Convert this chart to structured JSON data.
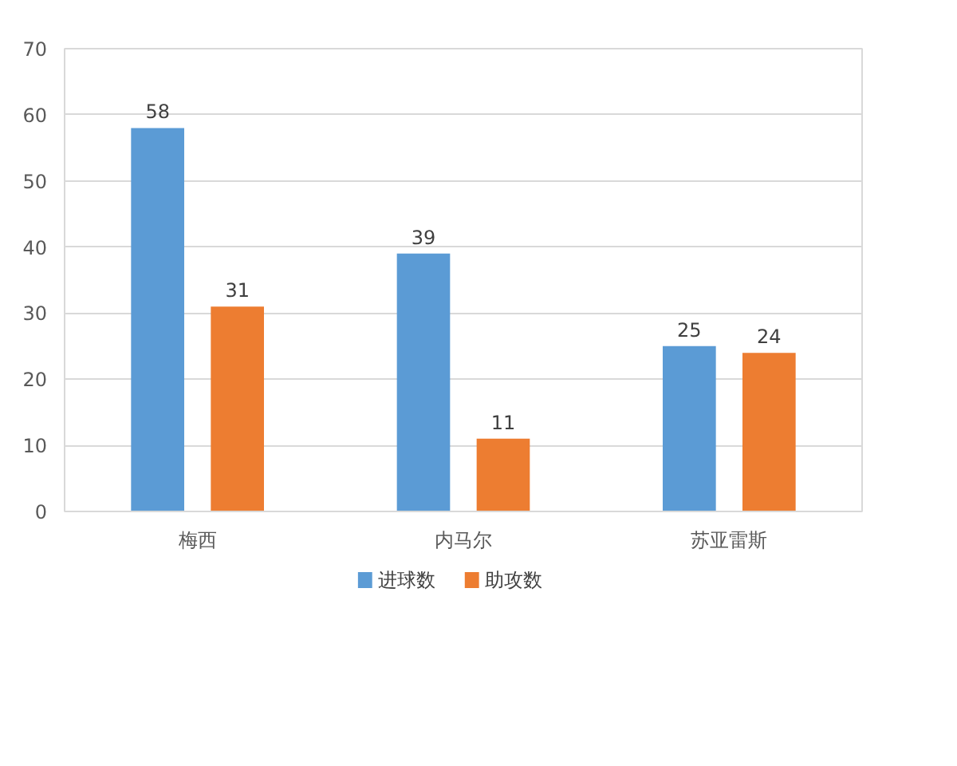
{
  "chart_data": {
    "type": "bar",
    "categories": [
      "梅西",
      "内马尔",
      "苏亚雷斯"
    ],
    "series": [
      {
        "name": "进球数",
        "color": "#5b9bd5",
        "values": [
          58,
          39,
          25
        ]
      },
      {
        "name": "助攻数",
        "color": "#ed7d31",
        "values": [
          31,
          11,
          24
        ]
      }
    ],
    "ylim": [
      0,
      70
    ],
    "yticks": [
      0,
      10,
      20,
      30,
      40,
      50,
      60,
      70
    ],
    "grid": "y",
    "legend": "bottom",
    "data_labels": true
  }
}
